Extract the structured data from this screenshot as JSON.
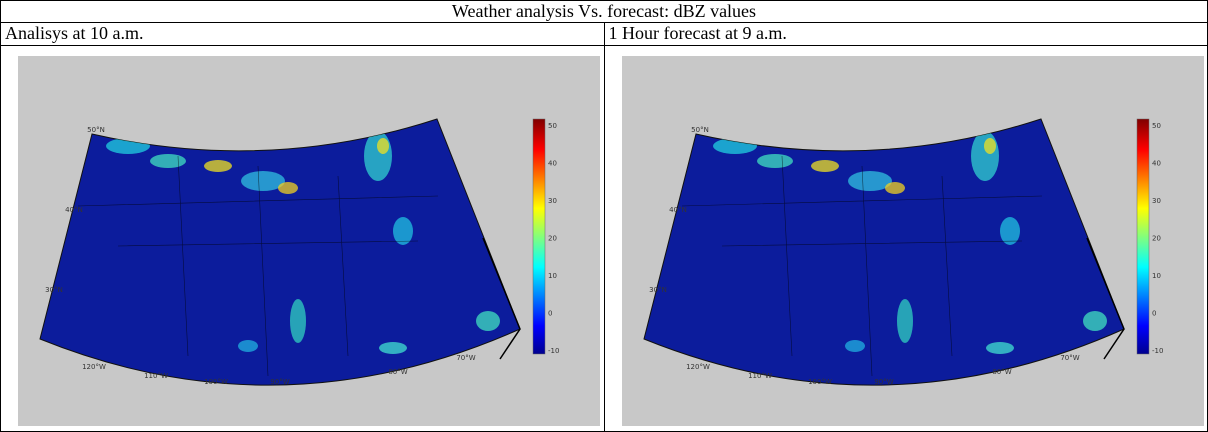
{
  "table": {
    "title": "Weather analysis Vs. forecast: dBZ values",
    "panels": [
      {
        "header": "Analisys at 10 a.m.",
        "map": {
          "lat_labels": [
            "50°N",
            "40°N",
            "30°N"
          ],
          "lon_labels": [
            "120°W",
            "110°W",
            "100°W",
            "90°W",
            "80°W",
            "70°W"
          ],
          "colorbar_ticks": [
            50,
            40,
            30,
            20,
            10,
            0,
            -10
          ]
        }
      },
      {
        "header": "1 Hour forecast at 9 a.m.",
        "map": {
          "lat_labels": [
            "50°N",
            "40°N",
            "30°N"
          ],
          "lon_labels": [
            "120°W",
            "110°W",
            "100°W",
            "90°W",
            "80°W",
            "70°W"
          ],
          "colorbar_ticks": [
            50,
            40,
            30,
            20,
            10,
            0,
            -10
          ]
        }
      }
    ]
  }
}
